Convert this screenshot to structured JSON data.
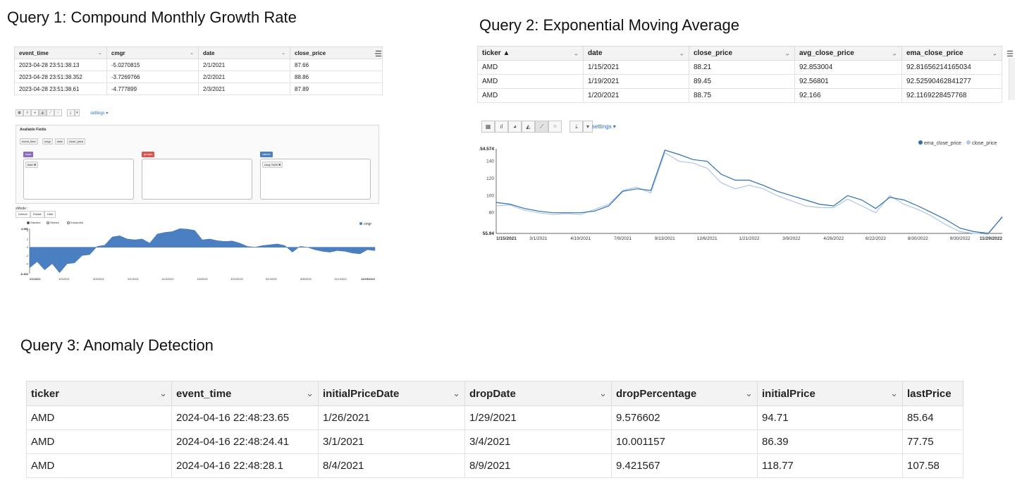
{
  "q1": {
    "title": "Query 1: Compound Monthly Growth Rate",
    "columns": [
      "event_time",
      "cmgr",
      "date",
      "close_price"
    ],
    "rows": [
      [
        "2023-04-28 23:51:38.13",
        "-5.0270815",
        "2/1/2021",
        "87.66"
      ],
      [
        "2023-04-28 23:51:38.352",
        "-3.7269766",
        "2/2/2021",
        "88.86"
      ],
      [
        "2023-04-28 23:51:38.61",
        "-4.777899",
        "2/3/2021",
        "87.89"
      ]
    ],
    "settings_label": "settings ▾",
    "fields_title": "Available Fields",
    "fields": [
      "event_time",
      "cmgr",
      "date",
      "close_price"
    ],
    "dropzones": [
      {
        "label": "keys",
        "color": "#8e6bbf",
        "chip": "date ✖"
      },
      {
        "label": "groups",
        "color": "#d9534f",
        "chip": ""
      },
      {
        "label": "values",
        "color": "#4a7fc1",
        "chip": "cmgr SUM ✖"
      }
    ],
    "mode_label": "xMode :",
    "tabs": [
      "Default",
      "Rotate",
      "Hide"
    ],
    "radios": [
      "Stacked",
      "Stream",
      "Expanded"
    ],
    "legend": "cmgr",
    "chart_data": {
      "type": "area",
      "series_name": "cmgr",
      "x": [
        "2/1/2021",
        "2/15/2021",
        "3/1/2021",
        "3/15/2021",
        "4/1/2021",
        "4/15/2021",
        "5/1/2021",
        "5/15/2021",
        "6/1/2021",
        "6/15/2021",
        "7/1/2021",
        "7/15/2021",
        "8/1/2021",
        "8/15/2021",
        "9/1/2021",
        "9/15/2021",
        "10/1/2021",
        "10/15/2021",
        "11/1/2021",
        "11/15/2021",
        "12/1/2021",
        "12/15/2021",
        "1/1/2022",
        "1/15/2022",
        "2/1/2022",
        "2/15/2022",
        "3/1/2022",
        "3/15/2022",
        "4/1/2022",
        "4/15/2022",
        "5/1/2022",
        "5/15/2022",
        "6/1/2022",
        "6/15/2022",
        "7/1/2022",
        "7/15/2022",
        "8/1/2022",
        "8/15/2022",
        "9/1/2022",
        "9/15/2022",
        "10/1/2022",
        "10/15/2022",
        "11/1/2022",
        "11/15/2022",
        "12/1/2022",
        "12/15/2022",
        "12/29/2022"
      ],
      "values": [
        -5.0,
        -3.5,
        -5.5,
        -4.0,
        -6.2,
        -4.0,
        -3.8,
        -2.0,
        -1.8,
        0.2,
        0.5,
        2.5,
        2.8,
        2.0,
        1.8,
        2.0,
        1.0,
        3.2,
        3.6,
        3.8,
        4.5,
        4.4,
        4.1,
        1.8,
        2.0,
        1.6,
        1.4,
        1.5,
        1.0,
        0.2,
        0.0,
        0.4,
        0.6,
        0.8,
        0.4,
        -1.2,
        0.2,
        0.0,
        -0.6,
        -1.0,
        -1.2,
        -0.8,
        -1.0,
        -1.4,
        -1.6,
        -0.6,
        -0.8
      ],
      "ymin": -6.402,
      "ymax": 4.556,
      "y_ticks": [
        4,
        2,
        0,
        -2,
        -4
      ],
      "ylim_labels": [
        "4.556",
        "-6.402"
      ],
      "x_tick_labels": [
        "2/1/2021",
        "3/3/2021",
        "6/3/2021",
        "9/1/2021",
        "11/3/2021",
        "1/5/2022",
        "3/22/2022",
        "6/1/2022",
        "8/8/2022",
        "11/1/2022",
        "12/29/2022"
      ]
    }
  },
  "q2": {
    "title": "Query 2: Exponential Moving Average",
    "columns": [
      "ticker ▲",
      "date",
      "close_price",
      "avg_close_price",
      "ema_close_price"
    ],
    "rows": [
      [
        "AMD",
        "1/15/2021",
        "88.21",
        "92.853004",
        "92.81656214165034"
      ],
      [
        "AMD",
        "1/19/2021",
        "89.45",
        "92.56801",
        "92.52590462841277"
      ],
      [
        "AMD",
        "1/20/2021",
        "88.75",
        "92.166",
        "92.1169228457768"
      ]
    ],
    "settings_label": "settings ▾",
    "legend": [
      "ema_close_price",
      "close_price"
    ],
    "chart_data": {
      "type": "line",
      "x": [
        "1/15/2021",
        "2/15/2021",
        "3/15/2021",
        "4/15/2021",
        "5/15/2021",
        "6/15/2021",
        "7/15/2021",
        "8/15/2021",
        "9/15/2021",
        "10/15/2021",
        "11/1/2021",
        "11/15/2021",
        "12/1/2021",
        "12/15/2021",
        "1/1/2022",
        "1/15/2022",
        "2/1/2022",
        "2/15/2022",
        "3/1/2022",
        "3/15/2022",
        "4/1/2022",
        "4/15/2022",
        "5/1/2022",
        "5/15/2022",
        "6/1/2022",
        "6/15/2022",
        "7/1/2022",
        "7/15/2022",
        "8/1/2022",
        "8/15/2022",
        "9/1/2022",
        "9/15/2022",
        "10/1/2022",
        "10/15/2022",
        "11/1/2022",
        "11/15/2022",
        "11/29/2022"
      ],
      "series": [
        {
          "name": "ema_close_price",
          "color": "#2c6fb0",
          "values": [
            92,
            90,
            85,
            82,
            80,
            80,
            80,
            82,
            88,
            105,
            108,
            106,
            153,
            148,
            142,
            140,
            125,
            118,
            118,
            112,
            105,
            100,
            95,
            90,
            88,
            100,
            95,
            85,
            98,
            95,
            88,
            80,
            72,
            62,
            58,
            56,
            75
          ]
        },
        {
          "name": "close_price",
          "color": "#aec7e8",
          "values": [
            88,
            89,
            83,
            80,
            78,
            79,
            78,
            84,
            90,
            106,
            110,
            103,
            150,
            140,
            138,
            132,
            115,
            108,
            112,
            108,
            100,
            94,
            88,
            86,
            86,
            96,
            88,
            80,
            100,
            90,
            84,
            76,
            66,
            58,
            56,
            55,
            76
          ]
        }
      ],
      "ymin": 55.94,
      "ymax": 154.574,
      "y_ticks": [
        140,
        120,
        100,
        80
      ],
      "ylim_labels": [
        "154.574",
        "55.94"
      ],
      "x_tick_labels": [
        "1/15/2021",
        "3/1/2021",
        "4/19/2021",
        "7/9/2021",
        "9/13/2021",
        "12/6/2021",
        "1/21/2022",
        "3/9/2022",
        "4/26/2022",
        "6/22/2022",
        "8/30/2022",
        "9/30/2022",
        "11/29/2022"
      ]
    }
  },
  "q3": {
    "title": "Query 3: Anomaly Detection",
    "columns": [
      "ticker",
      "event_time",
      "initialPriceDate",
      "dropDate",
      "dropPercentage",
      "initialPrice",
      "lastPrice"
    ],
    "rows": [
      [
        "AMD",
        "2024-04-16 22:48:23.65",
        "1/26/2021",
        "1/29/2021",
        "9.576602",
        "94.71",
        "85.64"
      ],
      [
        "AMD",
        "2024-04-16 22:48:24.41",
        "3/1/2021",
        "3/4/2021",
        "10.001157",
        "86.39",
        "77.75"
      ],
      [
        "AMD",
        "2024-04-16 22:48:28.1",
        "8/4/2021",
        "8/9/2021",
        "9.421567",
        "118.77",
        "107.58"
      ]
    ]
  },
  "icons": {
    "chevron": "chevron-down-icon",
    "menu": "hamburger-menu-icon",
    "toolbar": [
      "table-icon",
      "bar-chart-icon",
      "pie-chart-icon",
      "area-chart-icon",
      "line-chart-icon",
      "scatter-chart-icon",
      "download-icon",
      "dropdown-caret-icon"
    ]
  }
}
